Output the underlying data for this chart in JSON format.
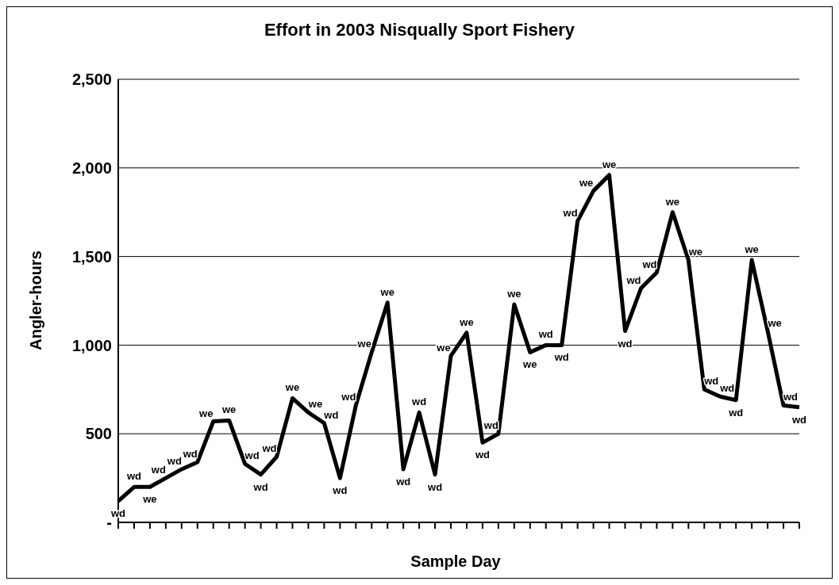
{
  "chart_data": {
    "type": "line",
    "title": "Effort in 2003 Nisqually Sport Fishery",
    "xlabel": "Sample Day",
    "ylabel": "Angler-hours",
    "categories": [
      null,
      null,
      null,
      null,
      null,
      null,
      null,
      null,
      null,
      null,
      null,
      null,
      null,
      null,
      null,
      null,
      null,
      null,
      null,
      null,
      null,
      null,
      null,
      null,
      null,
      null,
      null,
      null,
      null,
      null,
      null,
      null,
      null,
      null,
      null,
      null,
      null,
      null,
      null,
      null,
      null,
      null,
      null,
      null
    ],
    "series": [
      {
        "color": "#000000",
        "values": [
          120,
          200,
          200,
          250,
          300,
          340,
          570,
          575,
          330,
          270,
          370,
          700,
          620,
          560,
          250,
          660,
          960,
          1240,
          300,
          620,
          270,
          940,
          1070,
          450,
          500,
          1230,
          960,
          1000,
          1000,
          1700,
          1870,
          1960,
          1080,
          1320,
          1410,
          1750,
          1480,
          750,
          710,
          690,
          1480,
          1080,
          660,
          650
        ],
        "value_labels": [
          "wd",
          "wd",
          "we",
          "wd",
          "wd",
          "wd",
          "we",
          "we",
          "wd",
          "wd",
          "wd",
          "we",
          "we",
          "wd",
          "wd",
          "wd",
          "we",
          "we",
          "wd",
          "wd",
          "wd",
          "we",
          "we",
          "wd",
          "wd",
          "we",
          "we",
          "wd",
          "wd",
          "wd",
          "we",
          "we",
          "wd",
          "wd",
          "wd",
          "we",
          "we",
          "wd",
          "wd",
          "wd",
          "we",
          "we",
          "wd",
          "wd"
        ]
      }
    ],
    "ylim": [
      0,
      2500
    ],
    "yticks": [
      {
        "value": 0,
        "label": "-"
      },
      {
        "value": 500,
        "label": "500"
      },
      {
        "value": 1000,
        "label": "1,000"
      },
      {
        "value": 1500,
        "label": "1,500"
      },
      {
        "value": 2000,
        "label": "2,000"
      },
      {
        "value": 2500,
        "label": "2,500"
      }
    ],
    "grid": "y",
    "legend": false,
    "marker": "none",
    "line_style": "solid"
  }
}
